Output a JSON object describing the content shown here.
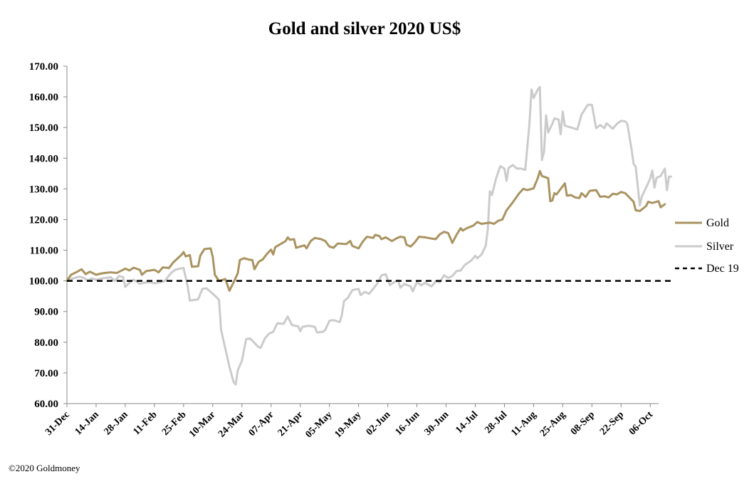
{
  "chart_data": {
    "type": "line",
    "title": "Gold and silver 2020  US$",
    "xlabel": "",
    "ylabel": "",
    "ylim": [
      60,
      170
    ],
    "yticks": [
      60,
      70,
      80,
      90,
      100,
      110,
      120,
      130,
      140,
      150,
      160,
      170
    ],
    "ytick_labels": [
      "60.00",
      "70.00",
      "80.00",
      "90.00",
      "100.00",
      "110.00",
      "120.00",
      "130.00",
      "140.00",
      "150.00",
      "160.00",
      "170.00"
    ],
    "x_range_days": [
      0,
      284
    ],
    "xtick_days": [
      0,
      14,
      28,
      42,
      56,
      70,
      84,
      98,
      112,
      126,
      140,
      154,
      168,
      182,
      196,
      210,
      224,
      238,
      252,
      266,
      280
    ],
    "xtick_labels": [
      "31-Dec",
      "14-Jan",
      "28-Jan",
      "11-Feb",
      "25-Feb",
      "10-Mar",
      "24-Mar",
      "07-Apr",
      "21-Apr",
      "05-May",
      "19-May",
      "02-Jun",
      "16-Jun",
      "30-Jun",
      "14-Jul",
      "28-Jul",
      "11-Aug",
      "25-Aug",
      "08-Sep",
      "22-Sep",
      "06-Oct"
    ],
    "grid": false,
    "legend_position": "right",
    "series": [
      {
        "name": "Gold",
        "color": "#a99360",
        "style": "solid",
        "points": [
          [
            0,
            100.0
          ],
          [
            2,
            102.0
          ],
          [
            5,
            103.0
          ],
          [
            7,
            103.8
          ],
          [
            9,
            102.2
          ],
          [
            11,
            103.0
          ],
          [
            14,
            102.0
          ],
          [
            17,
            102.5
          ],
          [
            21,
            102.8
          ],
          [
            24,
            102.6
          ],
          [
            28,
            104.0
          ],
          [
            30,
            103.4
          ],
          [
            32,
            104.3
          ],
          [
            35,
            103.6
          ],
          [
            36,
            102.0
          ],
          [
            38,
            103.2
          ],
          [
            42,
            103.6
          ],
          [
            44,
            102.8
          ],
          [
            46,
            104.4
          ],
          [
            49,
            104.2
          ],
          [
            51,
            106.0
          ],
          [
            55,
            108.5
          ],
          [
            56,
            109.4
          ],
          [
            57,
            108.0
          ],
          [
            59,
            108.4
          ],
          [
            60,
            104.6
          ],
          [
            63,
            104.8
          ],
          [
            64,
            108.2
          ],
          [
            66,
            110.4
          ],
          [
            69,
            110.6
          ],
          [
            70,
            107.8
          ],
          [
            71,
            102.0
          ],
          [
            73,
            100.0
          ],
          [
            76,
            100.6
          ],
          [
            78,
            96.8
          ],
          [
            80,
            99.5
          ],
          [
            82,
            102.5
          ],
          [
            83,
            106.8
          ],
          [
            85,
            107.4
          ],
          [
            87,
            107.0
          ],
          [
            89,
            106.8
          ],
          [
            90,
            103.8
          ],
          [
            92,
            106.2
          ],
          [
            94,
            107.0
          ],
          [
            96,
            108.8
          ],
          [
            98,
            110.2
          ],
          [
            99,
            108.6
          ],
          [
            100,
            111.0
          ],
          [
            102,
            111.8
          ],
          [
            105,
            113.0
          ],
          [
            106,
            114.2
          ],
          [
            107,
            113.4
          ],
          [
            109,
            113.6
          ],
          [
            110,
            110.8
          ],
          [
            112,
            111.2
          ],
          [
            114,
            111.6
          ],
          [
            115,
            110.6
          ],
          [
            117,
            113.0
          ],
          [
            119,
            114.0
          ],
          [
            122,
            113.6
          ],
          [
            124,
            113.0
          ],
          [
            126,
            111.2
          ],
          [
            128,
            110.8
          ],
          [
            130,
            112.2
          ],
          [
            134,
            112.0
          ],
          [
            136,
            113.0
          ],
          [
            137,
            111.4
          ],
          [
            140,
            110.6
          ],
          [
            142,
            112.8
          ],
          [
            144,
            114.4
          ],
          [
            147,
            114.0
          ],
          [
            148,
            115.0
          ],
          [
            150,
            114.6
          ],
          [
            151,
            113.6
          ],
          [
            153,
            114.2
          ],
          [
            156,
            113.0
          ],
          [
            158,
            113.8
          ],
          [
            160,
            114.4
          ],
          [
            162,
            114.2
          ],
          [
            163,
            111.8
          ],
          [
            165,
            111.2
          ],
          [
            167,
            112.6
          ],
          [
            169,
            114.4
          ],
          [
            172,
            114.2
          ],
          [
            175,
            113.8
          ],
          [
            177,
            113.6
          ],
          [
            179,
            115.2
          ],
          [
            181,
            116.0
          ],
          [
            183,
            115.6
          ],
          [
            185,
            112.4
          ],
          [
            187,
            115.0
          ],
          [
            189,
            117.2
          ],
          [
            190,
            116.4
          ],
          [
            192,
            117.2
          ],
          [
            195,
            118.0
          ],
          [
            197,
            119.2
          ],
          [
            199,
            118.6
          ],
          [
            203,
            119.0
          ],
          [
            205,
            118.6
          ],
          [
            207,
            119.6
          ],
          [
            209,
            120.0
          ],
          [
            211,
            123.0
          ],
          [
            214,
            125.6
          ],
          [
            217,
            128.5
          ],
          [
            219,
            130.0
          ],
          [
            221,
            129.6
          ],
          [
            224,
            130.2
          ],
          [
            226,
            133.5
          ],
          [
            227,
            135.8
          ],
          [
            228,
            134.2
          ],
          [
            231,
            133.5
          ],
          [
            232,
            126.0
          ],
          [
            233,
            126.2
          ],
          [
            234,
            128.6
          ],
          [
            235,
            128.2
          ],
          [
            237,
            130.0
          ],
          [
            239,
            131.8
          ],
          [
            240,
            127.8
          ],
          [
            242,
            128.0
          ],
          [
            244,
            127.2
          ],
          [
            246,
            127.0
          ],
          [
            247,
            128.6
          ],
          [
            249,
            127.4
          ],
          [
            251,
            129.4
          ],
          [
            254,
            129.6
          ],
          [
            256,
            127.4
          ],
          [
            258,
            127.6
          ],
          [
            260,
            127.2
          ],
          [
            262,
            128.4
          ],
          [
            264,
            128.2
          ],
          [
            266,
            129.0
          ],
          [
            268,
            128.6
          ],
          [
            270,
            127.2
          ],
          [
            272,
            125.8
          ],
          [
            273,
            123.0
          ],
          [
            275,
            122.8
          ],
          [
            278,
            124.4
          ],
          [
            279,
            125.8
          ],
          [
            281,
            125.4
          ],
          [
            284,
            126.0
          ],
          [
            285,
            124.0
          ],
          [
            287,
            125.0
          ]
        ]
      },
      {
        "name": "Silver",
        "color": "#cbcbcb",
        "style": "solid",
        "points": [
          [
            0,
            100.0
          ],
          [
            3,
            100.8
          ],
          [
            6,
            101.4
          ],
          [
            8,
            101.0
          ],
          [
            10,
            100.2
          ],
          [
            12,
            100.8
          ],
          [
            14,
            100.4
          ],
          [
            17,
            100.8
          ],
          [
            21,
            101.2
          ],
          [
            23,
            100.0
          ],
          [
            25,
            101.6
          ],
          [
            27,
            101.2
          ],
          [
            28,
            98.0
          ],
          [
            30,
            99.4
          ],
          [
            32,
            100.4
          ],
          [
            35,
            99.0
          ],
          [
            37,
            99.4
          ],
          [
            40,
            99.6
          ],
          [
            42,
            99.2
          ],
          [
            45,
            99.6
          ],
          [
            47,
            100.0
          ],
          [
            50,
            102.6
          ],
          [
            52,
            103.6
          ],
          [
            54,
            104.0
          ],
          [
            56,
            104.2
          ],
          [
            58,
            98.0
          ],
          [
            59,
            93.6
          ],
          [
            63,
            94.0
          ],
          [
            65,
            97.4
          ],
          [
            67,
            97.6
          ],
          [
            69,
            96.4
          ],
          [
            71,
            95.2
          ],
          [
            73,
            93.8
          ],
          [
            74,
            84.0
          ],
          [
            76,
            78.0
          ],
          [
            78,
            72.0
          ],
          [
            80,
            67.0
          ],
          [
            81,
            66.2
          ],
          [
            82,
            70.8
          ],
          [
            84,
            74.0
          ],
          [
            86,
            81.0
          ],
          [
            88,
            81.2
          ],
          [
            90,
            79.8
          ],
          [
            92,
            78.4
          ],
          [
            93,
            78.2
          ],
          [
            95,
            81.2
          ],
          [
            97,
            82.8
          ],
          [
            99,
            83.4
          ],
          [
            101,
            86.2
          ],
          [
            104,
            86.0
          ],
          [
            106,
            88.4
          ],
          [
            108,
            85.6
          ],
          [
            111,
            85.2
          ],
          [
            112,
            83.6
          ],
          [
            113,
            85.0
          ],
          [
            116,
            85.4
          ],
          [
            119,
            85.0
          ],
          [
            120,
            83.2
          ],
          [
            123,
            83.4
          ],
          [
            124,
            84.0
          ],
          [
            126,
            87.0
          ],
          [
            128,
            87.2
          ],
          [
            131,
            86.6
          ],
          [
            132,
            89.0
          ],
          [
            133,
            93.4
          ],
          [
            135,
            94.6
          ],
          [
            137,
            97.0
          ],
          [
            140,
            97.4
          ],
          [
            141,
            95.4
          ],
          [
            143,
            96.4
          ],
          [
            145,
            95.8
          ],
          [
            147,
            97.4
          ],
          [
            149,
            99.2
          ],
          [
            151,
            101.8
          ],
          [
            153,
            102.2
          ],
          [
            155,
            98.6
          ],
          [
            157,
            99.6
          ],
          [
            159,
            100.2
          ],
          [
            160,
            97.8
          ],
          [
            162,
            99.0
          ],
          [
            165,
            98.2
          ],
          [
            166,
            96.6
          ],
          [
            168,
            99.6
          ],
          [
            170,
            98.6
          ],
          [
            172,
            99.4
          ],
          [
            175,
            98.2
          ],
          [
            177,
            99.8
          ],
          [
            179,
            99.6
          ],
          [
            181,
            101.8
          ],
          [
            183,
            101.0
          ],
          [
            185,
            101.6
          ],
          [
            187,
            103.2
          ],
          [
            189,
            103.4
          ],
          [
            191,
            105.2
          ],
          [
            194,
            106.6
          ],
          [
            196,
            108.2
          ],
          [
            197,
            107.4
          ],
          [
            199,
            108.6
          ],
          [
            201,
            111.4
          ],
          [
            202,
            116.6
          ],
          [
            203,
            129.2
          ],
          [
            204,
            128.0
          ],
          [
            206,
            133.4
          ],
          [
            208,
            137.4
          ],
          [
            210,
            136.6
          ],
          [
            211,
            132.6
          ],
          [
            212,
            136.8
          ],
          [
            214,
            137.8
          ],
          [
            216,
            136.6
          ],
          [
            218,
            136.6
          ],
          [
            220,
            136.2
          ],
          [
            222,
            151.2
          ],
          [
            223,
            162.4
          ],
          [
            224,
            159.6
          ],
          [
            226,
            162.4
          ],
          [
            227,
            163.2
          ],
          [
            228,
            139.4
          ],
          [
            229,
            142.0
          ],
          [
            230,
            154.0
          ],
          [
            231,
            148.4
          ],
          [
            233,
            151.2
          ],
          [
            234,
            153.0
          ],
          [
            236,
            152.6
          ],
          [
            237,
            147.8
          ],
          [
            238,
            155.2
          ],
          [
            239,
            150.6
          ],
          [
            242,
            150.0
          ],
          [
            245,
            149.4
          ],
          [
            247,
            154.2
          ],
          [
            250,
            157.4
          ],
          [
            252,
            157.4
          ],
          [
            254,
            149.8
          ],
          [
            256,
            150.8
          ],
          [
            258,
            149.8
          ],
          [
            259,
            151.4
          ],
          [
            262,
            149.6
          ],
          [
            264,
            151.2
          ],
          [
            266,
            152.2
          ],
          [
            268,
            152.0
          ],
          [
            269,
            151.2
          ],
          [
            271,
            143.0
          ],
          [
            272,
            138.2
          ],
          [
            273,
            137.2
          ],
          [
            275,
            124.6
          ],
          [
            276,
            127.6
          ],
          [
            278,
            130.4
          ],
          [
            280,
            133.4
          ],
          [
            281,
            136.0
          ],
          [
            282,
            130.4
          ],
          [
            283,
            133.6
          ],
          [
            285,
            134.2
          ],
          [
            287,
            136.6
          ],
          [
            288,
            129.6
          ],
          [
            289,
            134.0
          ],
          [
            290,
            134.0
          ]
        ]
      },
      {
        "name": "Dec 19",
        "color": "#000000",
        "style": "dashed",
        "points": [
          [
            0,
            100.0
          ],
          [
            290,
            100.0
          ]
        ]
      }
    ]
  },
  "footer": {
    "copyright": "©2020 Goldmoney"
  }
}
